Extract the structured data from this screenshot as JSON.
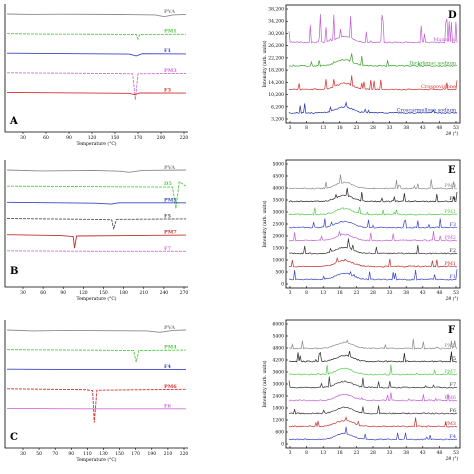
{
  "chart_data": [
    {
      "panel": "A",
      "type": "line",
      "xlabel": "Temperature (°C)",
      "ticks": [
        "30",
        "60",
        "90",
        "120",
        "150",
        "170",
        "200",
        "220"
      ],
      "xlim": [
        20,
        225
      ],
      "series": [
        {
          "name": "PVA",
          "color": "#8a8a8a",
          "points": [
            [
              20,
              0
            ],
            [
              50,
              -1
            ],
            [
              80,
              -0.5
            ],
            [
              150,
              -1.2
            ],
            [
              190,
              -2
            ],
            [
              200,
              -6
            ],
            [
              210,
              -2
            ],
            [
              225,
              -1
            ]
          ]
        },
        {
          "name": "PM1",
          "color": "#55c94a",
          "points": [
            [
              20,
              0
            ],
            [
              60,
              -1
            ],
            [
              130,
              -1.5
            ],
            [
              168,
              -2
            ],
            [
              170,
              -12
            ],
            [
              172,
              -2
            ],
            [
              225,
              -1.5
            ]
          ]
        },
        {
          "name": "F1",
          "color": "#3b45c4",
          "points": [
            [
              20,
              0
            ],
            [
              100,
              -1
            ],
            [
              160,
              -2
            ],
            [
              168,
              -6
            ],
            [
              175,
              -1
            ],
            [
              225,
              -1.5
            ]
          ]
        },
        {
          "name": "PM3",
          "color": "#d36fd6",
          "points": [
            [
              20,
              0
            ],
            [
              100,
              -1
            ],
            [
              164,
              -2
            ],
            [
              167,
              -60
            ],
            [
              170,
              -2
            ],
            [
              225,
              -1.5
            ]
          ]
        },
        {
          "name": "F3",
          "color": "#d33030",
          "points": [
            [
              20,
              0
            ],
            [
              100,
              -1
            ],
            [
              160,
              -2
            ],
            [
              166,
              -5
            ],
            [
              172,
              -1
            ],
            [
              225,
              -1.5
            ]
          ]
        }
      ]
    },
    {
      "panel": "B",
      "type": "line",
      "xlabel": "Temperature (°C)",
      "ticks": [
        "30",
        "60",
        "90",
        "120",
        "150",
        "180",
        "210",
        "240",
        "270"
      ],
      "xlim": [
        20,
        285
      ],
      "series": [
        {
          "name": "PVA",
          "color": "#8a8a8a",
          "points": [
            [
              20,
              0
            ],
            [
              70,
              -2
            ],
            [
              150,
              -1
            ],
            [
              190,
              -3
            ],
            [
              200,
              -5
            ],
            [
              220,
              -1
            ],
            [
              285,
              0
            ]
          ]
        },
        {
          "name": "D5",
          "color": "#55c94a",
          "points": [
            [
              20,
              0
            ],
            [
              150,
              -1
            ],
            [
              265,
              -2
            ],
            [
              270,
              -50
            ],
            [
              275,
              10
            ],
            [
              285,
              0
            ]
          ]
        },
        {
          "name": "PM5",
          "color": "#3b45c4",
          "points": [
            [
              20,
              0
            ],
            [
              150,
              -2
            ],
            [
              175,
              -4
            ],
            [
              185,
              -1
            ],
            [
              285,
              -1
            ]
          ]
        },
        {
          "name": "F5",
          "color": "#555555",
          "points": [
            [
              20,
              0
            ],
            [
              150,
              -2
            ],
            [
              175,
              -3
            ],
            [
              178,
              -24
            ],
            [
              182,
              -2
            ],
            [
              285,
              -1
            ]
          ]
        },
        {
          "name": "PM7",
          "color": "#c03030",
          "points": [
            [
              20,
              0
            ],
            [
              100,
              -2
            ],
            [
              118,
              -4
            ],
            [
              120,
              -30
            ],
            [
              123,
              -3
            ],
            [
              285,
              -1
            ]
          ]
        },
        {
          "name": "F7",
          "color": "#d36fd6",
          "points": [
            [
              20,
              0
            ],
            [
              150,
              -1
            ],
            [
              285,
              -1
            ]
          ]
        }
      ]
    },
    {
      "panel": "C",
      "type": "line",
      "xlabel": "Temperature (°C)",
      "ticks": [
        "30",
        "50",
        "70",
        "90",
        "110",
        "130",
        "150",
        "170",
        "190",
        "210",
        "220"
      ],
      "xlim": [
        20,
        225
      ],
      "series": [
        {
          "name": "PVA",
          "color": "#8a8a8a",
          "points": [
            [
              20,
              0
            ],
            [
              50,
              -2
            ],
            [
              90,
              -1
            ],
            [
              180,
              -2
            ],
            [
              195,
              -5
            ],
            [
              210,
              -1
            ],
            [
              225,
              0
            ]
          ]
        },
        {
          "name": "PM4",
          "color": "#55c94a",
          "points": [
            [
              20,
              0
            ],
            [
              100,
              -1
            ],
            [
              165,
              -2
            ],
            [
              168,
              -28
            ],
            [
              171,
              -2
            ],
            [
              225,
              -1
            ]
          ]
        },
        {
          "name": "F4",
          "color": "#3b45c4",
          "points": [
            [
              20,
              0
            ],
            [
              100,
              -1
            ],
            [
              225,
              -1
            ]
          ]
        },
        {
          "name": "PM6",
          "color": "#d33030",
          "points": [
            [
              20,
              0
            ],
            [
              110,
              -2
            ],
            [
              118,
              -4
            ],
            [
              120,
              -75
            ],
            [
              123,
              -3
            ],
            [
              225,
              -1
            ]
          ]
        },
        {
          "name": "F6",
          "color": "#d36fd6",
          "points": [
            [
              20,
              0
            ],
            [
              110,
              -1
            ],
            [
              225,
              -1
            ]
          ]
        }
      ]
    },
    {
      "panel": "D",
      "type": "line",
      "xlabel": "2θ (°)",
      "ylabel": "Intensity (arb. units)",
      "xticks": [
        "3",
        "8",
        "13",
        "18",
        "23",
        "28",
        "33",
        "38",
        "43",
        "48",
        "53"
      ],
      "yticks": [
        "38,200",
        "34,200",
        "30,200",
        "26,200",
        "22,200",
        "18,200",
        "14,200",
        "10,200",
        "6,200",
        "3,200"
      ],
      "series": [
        {
          "name": "Mannitol",
          "color": "#c060d0"
        },
        {
          "name": "Diclofenac sodium",
          "color": "#3aa030"
        },
        {
          "name": "Crospovidone",
          "color": "#d03030"
        },
        {
          "name": "Croscarmellose sodium",
          "color": "#2030b0"
        }
      ]
    },
    {
      "panel": "E",
      "type": "line",
      "xlabel": "2θ (°)",
      "ylabel": "Intensity (arb. units)",
      "xticks": [
        "3",
        "8",
        "13",
        "18",
        "23",
        "28",
        "33",
        "38",
        "43",
        "48",
        "53"
      ],
      "yticks": [
        "5000",
        "4500",
        "4000",
        "3500",
        "3000",
        "2500",
        "2000",
        "1500",
        "1000",
        "500",
        "0"
      ],
      "series": [
        {
          "name": "PM3",
          "color": "#8a8a8a"
        },
        {
          "name": "F4",
          "color": "#222222"
        },
        {
          "name": "PM1",
          "color": "#55c94a"
        },
        {
          "name": "F3",
          "color": "#3b45c4"
        },
        {
          "name": "PM2",
          "color": "#c060d0"
        },
        {
          "name": "F2",
          "color": "#333333"
        },
        {
          "name": "PM1",
          "color": "#c03030"
        },
        {
          "name": "F1",
          "color": "#3b45c4"
        }
      ]
    },
    {
      "panel": "F",
      "type": "line",
      "xlabel": "2θ (°)",
      "ylabel": "Intensity (arb. units)",
      "xticks": [
        "3",
        "8",
        "13",
        "18",
        "23",
        "28",
        "33",
        "38",
        "43",
        "48",
        "53"
      ],
      "yticks": [
        "6000",
        "5400",
        "4800",
        "4200",
        "3600",
        "3000",
        "2400",
        "1800",
        "1200",
        "600",
        "0"
      ],
      "series": [
        {
          "name": "PM5",
          "color": "#8a8a8a"
        },
        {
          "name": "F5",
          "color": "#222222"
        },
        {
          "name": "PM7",
          "color": "#55c94a"
        },
        {
          "name": "F7",
          "color": "#333333"
        },
        {
          "name": "PM6",
          "color": "#c060d0"
        },
        {
          "name": "F6",
          "color": "#333333"
        },
        {
          "name": "PM3",
          "color": "#c03030"
        },
        {
          "name": "F4",
          "color": "#3b45c4"
        }
      ]
    }
  ]
}
